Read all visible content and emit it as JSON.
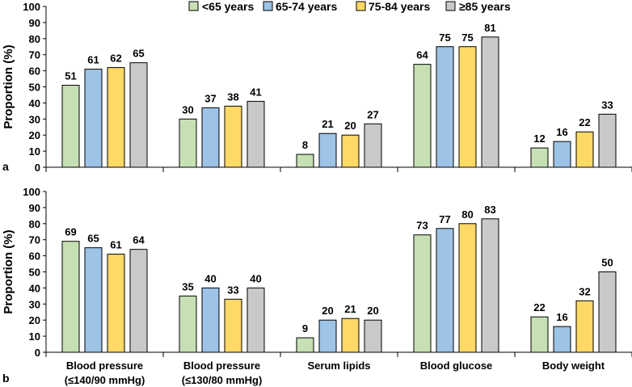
{
  "chart_data": [
    {
      "type": "bar",
      "panel": "a",
      "ylabel": "Proportion  (%)",
      "ylim": [
        0,
        100
      ],
      "yticks": [
        "0",
        "10",
        "20",
        "30",
        "40",
        "50",
        "60",
        "70",
        "80",
        "90",
        "100"
      ],
      "categories": [
        "Blood pressure (≤140/90 mmHg)",
        "Blood pressure (≤130/80 mmHg)",
        "Serum lipids",
        "Blood glucose",
        "Body weight"
      ],
      "series": [
        {
          "name": "<65 years",
          "values": [
            51,
            30,
            8,
            64,
            12
          ]
        },
        {
          "name": "65-74 years",
          "values": [
            61,
            37,
            21,
            75,
            16
          ]
        },
        {
          "name": "75-84 years",
          "values": [
            62,
            38,
            20,
            75,
            22
          ]
        },
        {
          "name": "≥85 years",
          "values": [
            65,
            41,
            27,
            81,
            33
          ]
        }
      ],
      "legend": "top"
    },
    {
      "type": "bar",
      "panel": "b",
      "ylabel": "Proportion  (%)",
      "ylim": [
        0,
        100
      ],
      "yticks": [
        "0",
        "10",
        "20",
        "30",
        "40",
        "50",
        "60",
        "70",
        "80",
        "90",
        "100"
      ],
      "categories": [
        "Blood pressure (≤140/90 mmHg)",
        "Blood pressure (≤130/80 mmHg)",
        "Serum lipids",
        "Blood glucose",
        "Body weight"
      ],
      "category_lines": [
        [
          "Blood pressure",
          "(≤140/90 mmHg)"
        ],
        [
          "Blood pressure",
          "(≤130/80 mmHg)"
        ],
        [
          "Serum lipids"
        ],
        [
          "Blood glucose"
        ],
        [
          "Body weight"
        ]
      ],
      "series": [
        {
          "name": "<65 years",
          "values": [
            69,
            35,
            9,
            73,
            22
          ]
        },
        {
          "name": "65-74 years",
          "values": [
            65,
            40,
            20,
            77,
            16
          ]
        },
        {
          "name": "75-84 years",
          "values": [
            61,
            33,
            21,
            80,
            32
          ]
        },
        {
          "name": "≥85 years",
          "values": [
            64,
            40,
            20,
            83,
            50
          ]
        }
      ]
    }
  ],
  "legend": [
    {
      "label": "<65 years"
    },
    {
      "label": "65-74 years"
    },
    {
      "label": "75-84 years"
    },
    {
      "label": "≥85 years"
    }
  ],
  "colors": {
    "series": [
      "#c6e0b4",
      "#9dc3e6",
      "#ffd966",
      "#c9c9c9"
    ],
    "stroke": "#000000",
    "background": "#ffffff"
  }
}
